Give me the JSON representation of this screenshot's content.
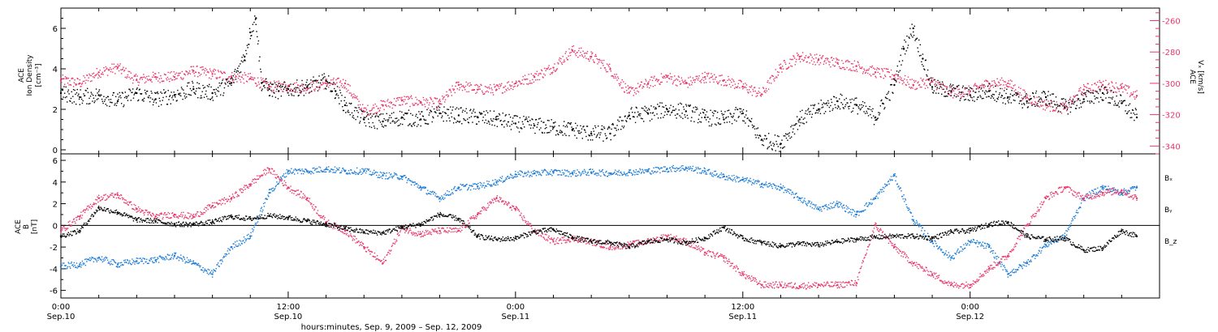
{
  "chart_data": [
    {
      "type": "scatter",
      "ylabel_line1": "ACE",
      "ylabel_line2": "Ion Density",
      "ylabel_line3": "[cm⁻³]",
      "y2label_line1": "ACE",
      "y2label_line2": "Vₓ [km/s]",
      "xlim": [
        0,
        58
      ],
      "ylim": [
        -0.2,
        7.0
      ],
      "yticks": [
        0,
        2,
        4,
        6
      ],
      "y2lim": [
        -345,
        -252
      ],
      "y2ticks": [
        -260,
        -280,
        -300,
        -320,
        -340
      ],
      "series": [
        {
          "color": "#000000",
          "axis": "left",
          "x": [
            0.0,
            1.0,
            2.0,
            3.0,
            4.0,
            5.0,
            6.0,
            7.0,
            8.0,
            9.0,
            9.7,
            10.0,
            10.3,
            10.6,
            11.0,
            11.5,
            12.0,
            13.0,
            14.0,
            14.5,
            15.0,
            16.0,
            17.0,
            18.0,
            19.0,
            20.0,
            21.0,
            22.0,
            23.0,
            24.0,
            25.0,
            26.0,
            27.0,
            28.0,
            29.0,
            30.0,
            31.0,
            32.0,
            33.0,
            34.0,
            35.0,
            36.0,
            37.0,
            38.0,
            39.0,
            40.0,
            41.0,
            42.0,
            43.0,
            44.0,
            44.5,
            45.0,
            45.5,
            46.0,
            47.0,
            48.0,
            49.0,
            50.0,
            51.0,
            52.0,
            53.0,
            54.0,
            55.0,
            56.0,
            56.8
          ],
          "y": [
            2.8,
            2.6,
            2.7,
            2.4,
            2.8,
            2.5,
            2.7,
            3.0,
            2.8,
            3.3,
            4.6,
            5.8,
            6.5,
            3.3,
            3.0,
            2.9,
            3.0,
            3.1,
            3.4,
            2.9,
            2.2,
            1.5,
            1.4,
            1.6,
            1.5,
            1.8,
            1.7,
            1.6,
            1.5,
            1.3,
            1.2,
            1.1,
            1.0,
            0.8,
            0.8,
            1.7,
            1.8,
            2.0,
            1.9,
            1.6,
            1.5,
            1.8,
            0.5,
            0.3,
            1.5,
            2.0,
            2.4,
            2.2,
            1.6,
            3.2,
            5.0,
            6.0,
            4.5,
            3.1,
            2.9,
            2.7,
            2.9,
            2.6,
            2.4,
            2.6,
            2.1,
            2.5,
            2.8,
            2.3,
            1.6
          ]
        },
        {
          "color": "#e8366a",
          "axis": "right",
          "x": [
            0.0,
            1.0,
            2.0,
            3.0,
            4.0,
            5.0,
            6.0,
            7.0,
            8.0,
            9.0,
            10.0,
            11.0,
            12.0,
            13.0,
            14.0,
            15.0,
            16.0,
            17.0,
            18.0,
            19.0,
            20.0,
            21.0,
            22.0,
            23.0,
            24.0,
            25.0,
            26.0,
            27.0,
            28.0,
            29.0,
            30.0,
            31.0,
            32.0,
            33.0,
            34.0,
            35.0,
            36.0,
            37.0,
            38.0,
            39.0,
            40.0,
            41.0,
            42.0,
            43.0,
            44.0,
            45.0,
            46.0,
            47.0,
            48.0,
            49.0,
            50.0,
            51.0,
            52.0,
            53.0,
            54.0,
            55.0,
            56.0,
            56.8
          ],
          "y": [
            -298,
            -300,
            -293,
            -290,
            -298,
            -296,
            -296,
            -292,
            -294,
            -296,
            -297,
            -302,
            -302,
            -303,
            -300,
            -300,
            -318,
            -314,
            -311,
            -312,
            -313,
            -301,
            -304,
            -304,
            -300,
            -296,
            -290,
            -279,
            -283,
            -291,
            -306,
            -300,
            -296,
            -300,
            -296,
            -298,
            -302,
            -307,
            -290,
            -283,
            -285,
            -287,
            -289,
            -293,
            -295,
            -301,
            -299,
            -306,
            -305,
            -300,
            -300,
            -309,
            -314,
            -316,
            -304,
            -301,
            -303,
            -308
          ]
        }
      ]
    },
    {
      "type": "scatter",
      "ylabel_line1": "ACE",
      "ylabel_line2": "B",
      "ylabel_line3": "[nT]",
      "xlim": [
        0,
        58
      ],
      "ylim": [
        -6.7,
        6.6
      ],
      "yticks": [
        -6,
        -4,
        -2,
        0,
        2,
        4,
        6
      ],
      "zero_line": true,
      "series": [
        {
          "name": "Bₓ",
          "color": "#000000",
          "x": [
            0.0,
            1.0,
            2.0,
            3.0,
            4.0,
            5.0,
            6.0,
            7.0,
            8.0,
            9.0,
            10.0,
            11.0,
            12.0,
            13.0,
            14.0,
            15.0,
            16.0,
            17.0,
            18.0,
            19.0,
            20.0,
            21.0,
            22.0,
            23.0,
            24.0,
            25.0,
            26.0,
            27.0,
            28.0,
            29.0,
            30.0,
            31.0,
            32.0,
            33.0,
            34.0,
            35.0,
            36.0,
            37.0,
            38.0,
            39.0,
            40.0,
            41.0,
            42.0,
            43.0,
            44.0,
            45.0,
            46.0,
            47.0,
            48.0,
            49.0,
            50.0,
            51.0,
            52.0,
            53.0,
            54.0,
            55.0,
            56.0,
            56.8
          ],
          "y": [
            -1.0,
            -0.5,
            1.6,
            1.2,
            0.5,
            0.4,
            0.1,
            0.1,
            0.3,
            0.8,
            0.6,
            0.9,
            0.7,
            0.4,
            0.1,
            -0.3,
            -0.6,
            -0.7,
            -0.2,
            0.1,
            1.0,
            0.6,
            -1.0,
            -1.3,
            -1.2,
            -0.6,
            -0.4,
            -1.1,
            -1.5,
            -1.6,
            -2.0,
            -1.5,
            -1.3,
            -1.6,
            -1.2,
            -0.2,
            -1.2,
            -1.6,
            -1.9,
            -1.7,
            -1.8,
            -1.5,
            -1.3,
            -1.1,
            -1.0,
            -1.0,
            -1.2,
            -0.6,
            -0.5,
            0.1,
            0.3,
            -1.0,
            -1.3,
            -1.2,
            -2.3,
            -2.1,
            -0.5,
            -1.0
          ]
        },
        {
          "name": "Bᵧ",
          "color": "#1a7bd6",
          "x": [
            0.0,
            1.0,
            2.0,
            3.0,
            4.0,
            5.0,
            6.0,
            7.0,
            8.0,
            9.0,
            10.0,
            11.0,
            12.0,
            13.0,
            14.0,
            15.0,
            16.0,
            17.0,
            18.0,
            19.0,
            20.0,
            21.0,
            22.0,
            23.0,
            24.0,
            25.0,
            26.0,
            27.0,
            28.0,
            29.0,
            30.0,
            31.0,
            32.0,
            33.0,
            34.0,
            35.0,
            36.0,
            37.0,
            38.0,
            39.0,
            40.0,
            41.0,
            42.0,
            43.0,
            44.0,
            45.0,
            46.0,
            47.0,
            48.0,
            49.0,
            50.0,
            51.0,
            52.0,
            53.0,
            54.0,
            55.0,
            56.0,
            56.8
          ],
          "y": [
            -3.8,
            -3.6,
            -3.0,
            -3.6,
            -3.3,
            -3.2,
            -2.8,
            -3.5,
            -4.5,
            -2.0,
            -1.0,
            3.0,
            5.0,
            5.0,
            5.2,
            5.0,
            5.0,
            4.6,
            4.5,
            3.5,
            2.5,
            3.5,
            3.6,
            4.0,
            4.7,
            4.8,
            4.9,
            4.8,
            4.9,
            4.8,
            4.9,
            5.0,
            5.2,
            5.3,
            5.0,
            4.5,
            4.2,
            3.8,
            3.5,
            2.5,
            1.5,
            2.0,
            1.0,
            2.5,
            4.6,
            0.5,
            -1.5,
            -3.0,
            -1.5,
            -2.0,
            -4.5,
            -3.5,
            -1.8,
            -1.0,
            2.5,
            3.5,
            3.0,
            3.5
          ]
        },
        {
          "name": "B_z",
          "color": "#e8366a",
          "x": [
            0.0,
            1.0,
            2.0,
            3.0,
            4.0,
            5.0,
            6.0,
            7.0,
            8.0,
            9.0,
            10.0,
            11.0,
            12.0,
            13.0,
            14.0,
            15.0,
            16.0,
            17.0,
            18.0,
            19.0,
            20.0,
            21.0,
            22.0,
            23.0,
            24.0,
            25.0,
            26.0,
            27.0,
            28.0,
            29.0,
            30.0,
            31.0,
            32.0,
            33.0,
            34.0,
            35.0,
            36.0,
            37.0,
            38.0,
            39.0,
            40.0,
            41.0,
            42.0,
            43.0,
            44.0,
            45.0,
            46.0,
            47.0,
            48.0,
            49.0,
            50.0,
            51.0,
            52.0,
            53.0,
            54.0,
            55.0,
            56.0,
            56.8
          ],
          "y": [
            -0.5,
            0.8,
            2.5,
            2.8,
            1.5,
            0.8,
            1.0,
            0.8,
            1.8,
            2.5,
            3.8,
            5.2,
            3.5,
            2.5,
            0.3,
            -0.5,
            -2.0,
            -3.5,
            -0.3,
            -0.8,
            -0.5,
            -0.5,
            1.0,
            2.5,
            1.5,
            -0.5,
            -1.5,
            -1.2,
            -1.5,
            -2.0,
            -1.8,
            -1.5,
            -1.0,
            -1.5,
            -2.5,
            -3.0,
            -4.5,
            -5.5,
            -5.5,
            -5.6,
            -5.5,
            -5.5,
            -5.3,
            0.0,
            -2.0,
            -3.5,
            -4.5,
            -5.5,
            -5.5,
            -4.0,
            -2.8,
            0.0,
            2.5,
            3.5,
            2.5,
            3.0,
            3.2,
            2.5
          ]
        }
      ]
    }
  ],
  "x_ticks": [
    {
      "t": 0,
      "time": "0:00",
      "date": "Sep.10"
    },
    {
      "t": 12,
      "time": "12:00",
      "date": "Sep.10"
    },
    {
      "t": 24,
      "time": "0:00",
      "date": "Sep.11"
    },
    {
      "t": 36,
      "time": "12:00",
      "date": "Sep.11"
    },
    {
      "t": 48,
      "time": "0:00",
      "date": "Sep.12"
    }
  ],
  "xlabel": "hours:minutes, Sep.  9, 2009 – Sep. 12, 2009",
  "colors": {
    "black": "#000000",
    "red": "#e8366a",
    "blue": "#1a7bd6"
  }
}
